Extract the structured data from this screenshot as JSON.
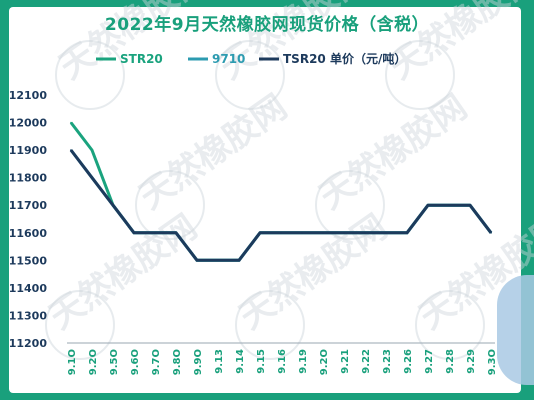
{
  "chart_data": {
    "type": "line",
    "title": "2022年9月天然橡胶网现货价格（含税）",
    "categories": [
      "9.1O",
      "9.2O",
      "9.5O",
      "9.6O",
      "9.7O",
      "9.8O",
      "9.9O",
      "9.13",
      "9.14",
      "9.15",
      "9.16",
      "9.19",
      "9.2O",
      "9.21",
      "9.22",
      "9.23",
      "9.26",
      "9.27",
      "9.28",
      "9.29",
      "9.3O"
    ],
    "yticks": [
      "12100",
      "12000",
      "11900",
      "11800",
      "11700",
      "11600",
      "11500",
      "11400",
      "11300",
      "11200"
    ],
    "ylim": [
      11200,
      12100
    ],
    "grid": false,
    "legend_position": "top",
    "series": [
      {
        "name": "STR20",
        "color": "#1aa37e",
        "values": [
          12000,
          11900,
          11700,
          11600,
          11600,
          11600,
          11500,
          11500,
          11500,
          11600,
          11600,
          11600,
          11600,
          11600,
          11600,
          11600,
          11600,
          11700,
          11700,
          11700,
          11600
        ]
      },
      {
        "name": "9710",
        "color": "#2c9bb0",
        "values": [
          11900,
          11800,
          11700,
          11600,
          11600,
          11600,
          11500,
          11500,
          11500,
          11600,
          11600,
          11600,
          11600,
          11600,
          11600,
          11600,
          11600,
          11700,
          11700,
          11700,
          11600
        ]
      },
      {
        "name": "TSR20 单价（元/吨）",
        "color": "#1d3a5c",
        "values": [
          11900,
          11800,
          11700,
          11600,
          11600,
          11600,
          11500,
          11500,
          11500,
          11600,
          11600,
          11600,
          11600,
          11600,
          11600,
          11600,
          11600,
          11700,
          11700,
          11700,
          11600
        ]
      }
    ]
  },
  "watermark": "天然橡胶网"
}
